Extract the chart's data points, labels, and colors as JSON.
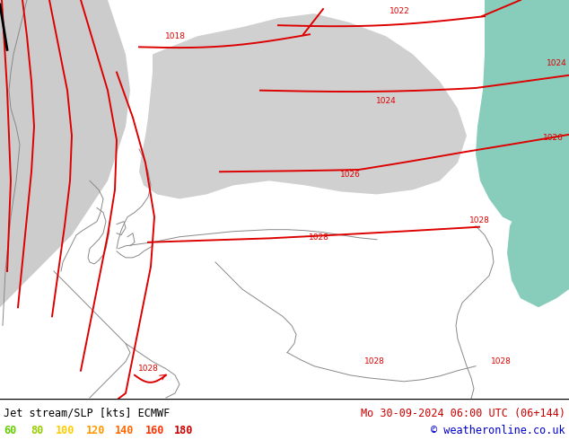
{
  "title_left": "Jet stream/SLP [kts] ECMWF",
  "title_right": "Mo 30-09-2024 06:00 UTC (06+144)",
  "copyright": "© weatheronline.co.uk",
  "legend_values": [
    "60",
    "80",
    "100",
    "120",
    "140",
    "160",
    "180"
  ],
  "legend_colors": [
    "#66cc00",
    "#99cc00",
    "#ffcc00",
    "#ff9900",
    "#ff6600",
    "#ff3300",
    "#cc0000"
  ],
  "bg_color": "#ffffff",
  "land_green": "#aadd44",
  "sea_gray": "#cccccc",
  "sea_teal": "#88ccbb",
  "high_pressure_white": "#e8e8e8",
  "text_color_left": "#000000",
  "text_color_right": "#cc0000",
  "copyright_color": "#0000cc",
  "figsize": [
    6.34,
    4.9
  ],
  "dpi": 100,
  "isobar_color": "#dd0000",
  "coast_color": "#888888",
  "jet_black_color": "#000000"
}
